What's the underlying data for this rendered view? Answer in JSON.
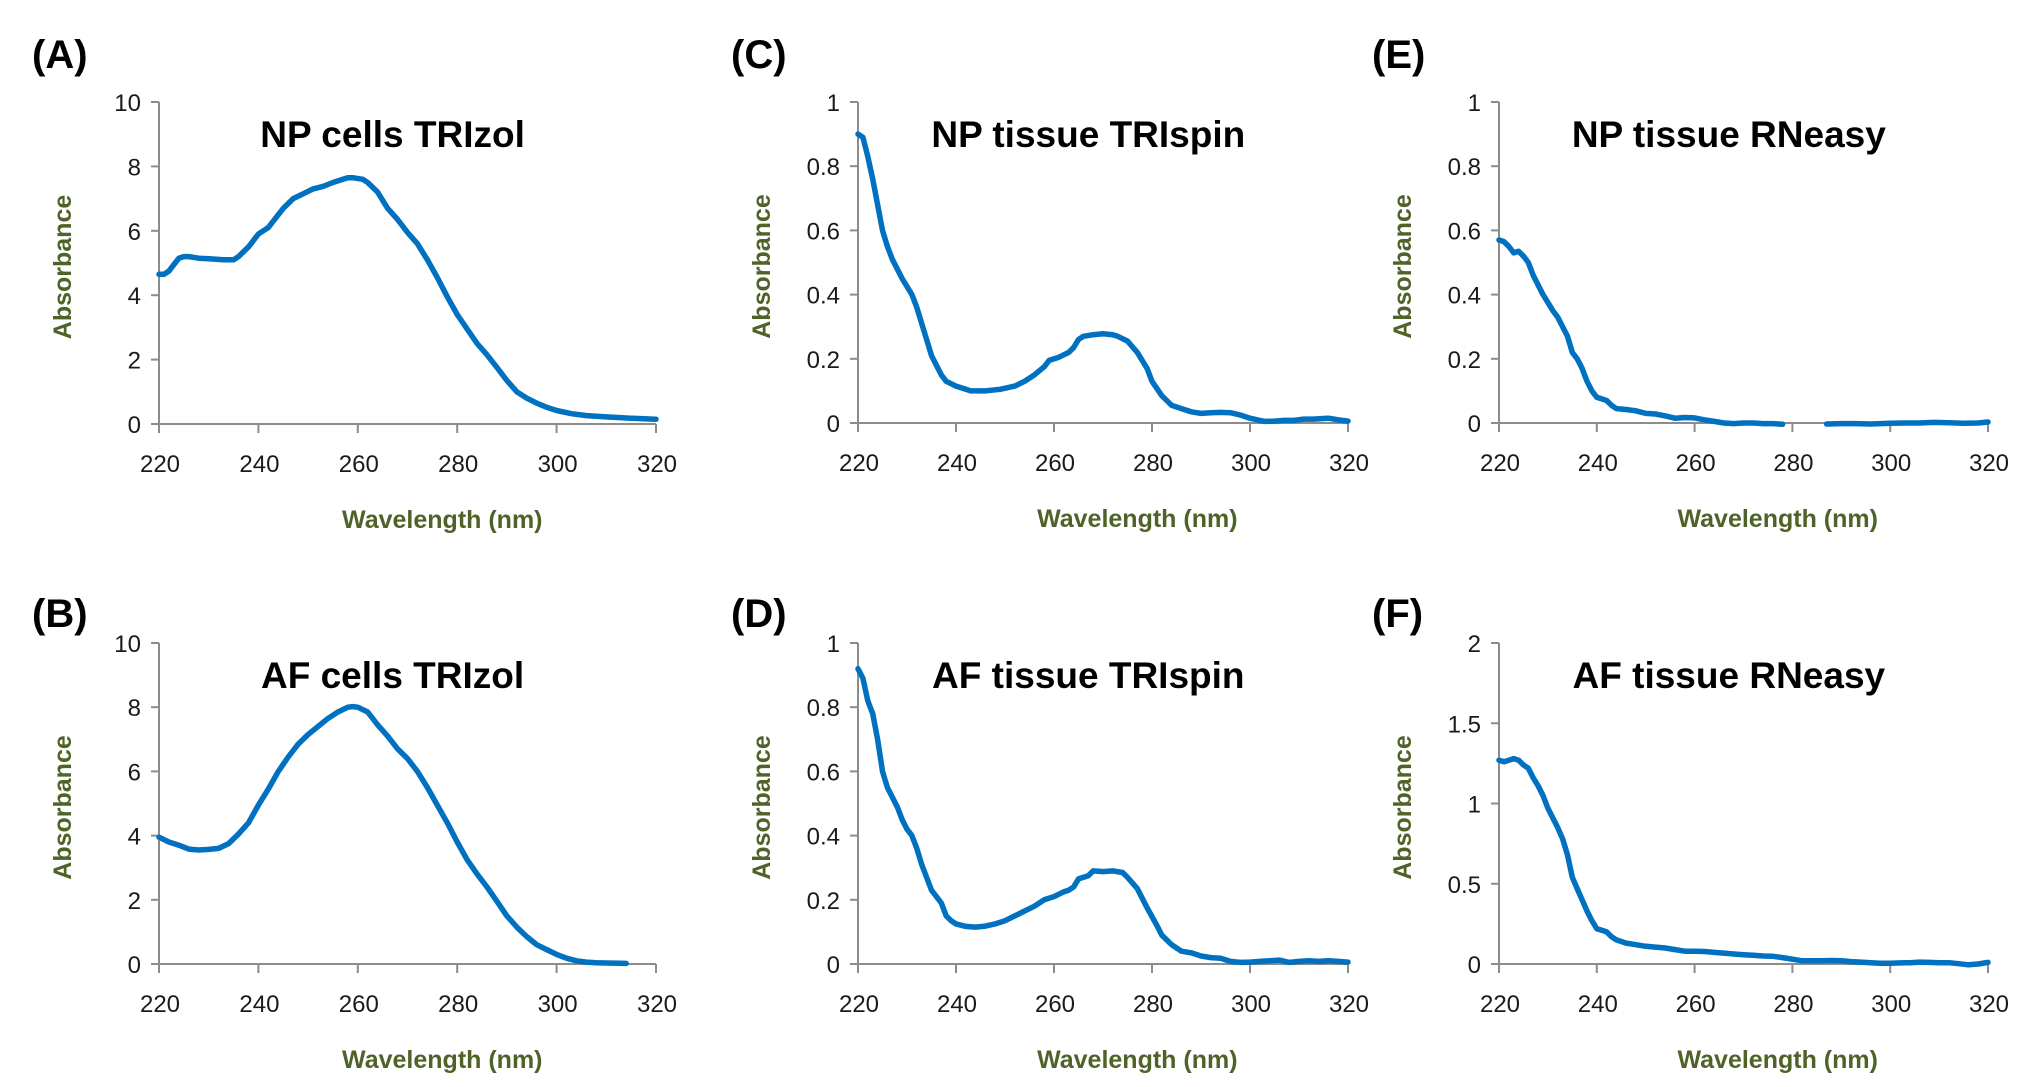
{
  "figure": {
    "line_color": "#0070C0",
    "axis_title_color": "#4F6228"
  },
  "chart_data": [
    {
      "id": "A",
      "panel_label": "(A)",
      "type": "line",
      "title": "NP cells TRIzol",
      "xlabel": "Wavelength (nm)",
      "ylabel": "Absorbance",
      "xlim": [
        220,
        320
      ],
      "ylim": [
        0,
        10
      ],
      "xticks": [
        220,
        240,
        260,
        280,
        300,
        320
      ],
      "yticks": [
        0,
        2,
        4,
        6,
        8,
        10
      ],
      "ytick_labels": [
        "0",
        "2",
        "4",
        "6",
        "8",
        "10"
      ],
      "grid": false,
      "legend": "none",
      "series": [
        {
          "name": "NP cells TRIzol",
          "x": [
            220,
            221,
            222,
            223,
            224,
            225,
            226,
            228,
            230,
            233,
            235,
            236,
            238,
            240,
            242,
            244,
            245,
            247,
            249,
            251,
            253,
            255,
            257,
            258,
            259,
            261,
            262,
            264,
            266,
            268,
            270,
            272,
            274,
            276,
            278,
            280,
            282,
            284,
            286,
            288,
            290,
            292,
            294,
            296,
            298,
            300,
            303,
            306,
            310,
            315,
            320
          ],
          "y": [
            4.65,
            4.65,
            4.75,
            4.95,
            5.15,
            5.2,
            5.2,
            5.15,
            5.13,
            5.1,
            5.1,
            5.2,
            5.5,
            5.9,
            6.1,
            6.5,
            6.7,
            7.0,
            7.15,
            7.3,
            7.38,
            7.5,
            7.6,
            7.65,
            7.65,
            7.6,
            7.5,
            7.2,
            6.7,
            6.35,
            5.95,
            5.6,
            5.1,
            4.55,
            3.95,
            3.4,
            2.95,
            2.5,
            2.15,
            1.75,
            1.35,
            1.0,
            0.8,
            0.65,
            0.52,
            0.42,
            0.32,
            0.26,
            0.22,
            0.18,
            0.15
          ]
        }
      ]
    },
    {
      "id": "B",
      "panel_label": "(B)",
      "type": "line",
      "title": "AF cells TRIzol",
      "xlabel": "Wavelength (nm)",
      "ylabel": "Absorbance",
      "xlim": [
        220,
        320
      ],
      "ylim": [
        0,
        10
      ],
      "xticks": [
        220,
        240,
        260,
        280,
        300,
        320
      ],
      "yticks": [
        0,
        2,
        4,
        6,
        8,
        10
      ],
      "ytick_labels": [
        "0",
        "2",
        "4",
        "6",
        "8",
        "10"
      ],
      "grid": false,
      "legend": "none",
      "series": [
        {
          "name": "AF cells TRIzol",
          "x": [
            220,
            222,
            224,
            226,
            228,
            230,
            232,
            234,
            236,
            238,
            240,
            242,
            244,
            246,
            248,
            250,
            252,
            254,
            256,
            258,
            259,
            260,
            262,
            264,
            266,
            268,
            270,
            272,
            274,
            276,
            278,
            280,
            282,
            284,
            286,
            288,
            290,
            292,
            294,
            296,
            298,
            300,
            302,
            304,
            306,
            308,
            310,
            314,
            320
          ],
          "y": [
            3.95,
            3.8,
            3.7,
            3.58,
            3.55,
            3.57,
            3.6,
            3.75,
            4.05,
            4.4,
            4.95,
            5.45,
            6.0,
            6.45,
            6.85,
            7.15,
            7.4,
            7.65,
            7.85,
            8.0,
            8.02,
            8.0,
            7.85,
            7.45,
            7.1,
            6.7,
            6.4,
            6.0,
            5.5,
            4.95,
            4.4,
            3.8,
            3.25,
            2.8,
            2.4,
            1.95,
            1.5,
            1.15,
            0.85,
            0.6,
            0.45,
            0.3,
            0.18,
            0.1,
            0.06,
            0.04,
            0.03,
            0.02,
            0.02
          ]
        }
      ]
    },
    {
      "id": "C",
      "panel_label": "(C)",
      "type": "line",
      "title": "NP tissue TRIspin",
      "xlabel": "Wavelength (nm)",
      "ylabel": "Absorbance",
      "xlim": [
        220,
        320
      ],
      "ylim": [
        0,
        1
      ],
      "xticks": [
        220,
        240,
        260,
        280,
        300,
        320
      ],
      "yticks": [
        0,
        0.2,
        0.4,
        0.6,
        0.8,
        1
      ],
      "ytick_labels": [
        "0",
        "0.2",
        "0.4",
        "0.6",
        "0.8",
        "1"
      ],
      "grid": false,
      "legend": "none",
      "series": [
        {
          "name": "NP tissue TRIspin",
          "x": [
            220,
            221,
            222,
            223,
            224,
            225,
            226,
            227,
            229,
            231,
            232,
            233,
            234,
            235,
            236,
            237,
            238,
            240,
            242,
            243,
            246,
            249,
            252,
            254,
            256,
            258,
            259,
            261,
            263,
            264,
            265,
            266,
            268,
            270,
            272,
            273,
            275,
            277,
            279,
            280,
            282,
            284,
            286,
            288,
            290,
            292,
            294,
            296,
            298,
            300,
            302,
            303,
            305,
            307,
            309,
            311,
            313,
            315,
            316,
            318,
            320
          ],
          "y": [
            0.9,
            0.89,
            0.83,
            0.76,
            0.68,
            0.6,
            0.55,
            0.51,
            0.45,
            0.4,
            0.36,
            0.31,
            0.26,
            0.21,
            0.18,
            0.15,
            0.13,
            0.115,
            0.105,
            0.1,
            0.1,
            0.105,
            0.115,
            0.13,
            0.15,
            0.175,
            0.195,
            0.205,
            0.22,
            0.235,
            0.26,
            0.27,
            0.275,
            0.278,
            0.275,
            0.27,
            0.255,
            0.22,
            0.17,
            0.13,
            0.085,
            0.055,
            0.045,
            0.035,
            0.03,
            0.032,
            0.033,
            0.032,
            0.025,
            0.015,
            0.008,
            0.005,
            0.006,
            0.008,
            0.008,
            0.012,
            0.012,
            0.014,
            0.015,
            0.01,
            0.006
          ]
        }
      ]
    },
    {
      "id": "D",
      "panel_label": "(D)",
      "type": "line",
      "title": "AF tissue TRIspin",
      "xlabel": "Wavelength (nm)",
      "ylabel": "Absorbance",
      "xlim": [
        220,
        320
      ],
      "ylim": [
        0,
        1
      ],
      "xticks": [
        220,
        240,
        260,
        280,
        300,
        320
      ],
      "yticks": [
        0,
        0.2,
        0.4,
        0.6,
        0.8,
        1
      ],
      "ytick_labels": [
        "0",
        "0.2",
        "0.4",
        "0.6",
        "0.8",
        "1"
      ],
      "grid": false,
      "legend": "none",
      "series": [
        {
          "name": "AF tissue TRIspin",
          "x": [
            220,
            221,
            222,
            223,
            224,
            225,
            226,
            227,
            228,
            229,
            230,
            231,
            232,
            233,
            234,
            235,
            236,
            237,
            238,
            239,
            240,
            242,
            244,
            246,
            248,
            250,
            252,
            254,
            256,
            258,
            260,
            262,
            263,
            264,
            265,
            267,
            268,
            270,
            272,
            274,
            275,
            277,
            279,
            281,
            282,
            284,
            286,
            288,
            290,
            292,
            294,
            296,
            298,
            300,
            302,
            304,
            306,
            308,
            310,
            312,
            314,
            316,
            318,
            320
          ],
          "y": [
            0.92,
            0.89,
            0.82,
            0.78,
            0.7,
            0.6,
            0.55,
            0.52,
            0.49,
            0.45,
            0.42,
            0.4,
            0.36,
            0.31,
            0.27,
            0.23,
            0.21,
            0.19,
            0.15,
            0.135,
            0.125,
            0.117,
            0.115,
            0.118,
            0.125,
            0.135,
            0.15,
            0.165,
            0.18,
            0.2,
            0.21,
            0.225,
            0.23,
            0.24,
            0.265,
            0.275,
            0.29,
            0.288,
            0.29,
            0.285,
            0.27,
            0.235,
            0.175,
            0.12,
            0.09,
            0.06,
            0.04,
            0.035,
            0.025,
            0.02,
            0.018,
            0.008,
            0.005,
            0.006,
            0.008,
            0.01,
            0.012,
            0.005,
            0.008,
            0.01,
            0.008,
            0.01,
            0.008,
            0.006
          ]
        }
      ]
    },
    {
      "id": "E",
      "panel_label": "(E)",
      "type": "line",
      "title": "NP tissue RNeasy",
      "xlabel": "Wavelength (nm)",
      "ylabel": "Absorbance",
      "xlim": [
        220,
        320
      ],
      "ylim": [
        0,
        1
      ],
      "xticks": [
        220,
        240,
        260,
        280,
        300,
        320
      ],
      "yticks": [
        0,
        0.2,
        0.4,
        0.6,
        0.8,
        1
      ],
      "ytick_labels": [
        "0",
        "0.2",
        "0.4",
        "0.6",
        "0.8",
        "1"
      ],
      "grid": false,
      "legend": "none",
      "series": [
        {
          "name": "NP tissue RNeasy",
          "x": [
            220,
            221,
            222,
            223,
            224,
            225,
            226,
            227,
            228,
            229,
            230,
            231,
            232,
            233,
            234,
            235,
            236,
            237,
            238,
            239,
            240,
            241,
            242,
            243,
            244,
            246,
            248,
            250,
            252,
            254,
            256,
            258,
            260,
            262,
            264,
            266,
            268,
            270,
            272,
            274,
            276,
            278,
            287,
            290,
            293,
            296,
            300,
            303,
            306,
            309,
            312,
            315,
            318,
            320
          ],
          "y": [
            0.57,
            0.565,
            0.55,
            0.53,
            0.535,
            0.52,
            0.5,
            0.46,
            0.43,
            0.4,
            0.375,
            0.35,
            0.33,
            0.3,
            0.27,
            0.22,
            0.2,
            0.17,
            0.13,
            0.1,
            0.08,
            0.075,
            0.07,
            0.055,
            0.045,
            0.042,
            0.038,
            0.03,
            0.028,
            0.022,
            0.015,
            0.017,
            0.016,
            0.01,
            0.005,
            0.0,
            -0.002,
            0.0,
            0.0,
            -0.002,
            -0.002,
            -0.004,
            -0.003,
            -0.002,
            -0.002,
            -0.003,
            -0.001,
            0.0,
            0.0,
            0.002,
            0.001,
            -0.001,
            0.0,
            0.003
          ]
        }
      ],
      "note": "data gap between ~278 and ~287 nm (trace below axis)"
    },
    {
      "id": "F",
      "panel_label": "(F)",
      "type": "line",
      "title": "AF tissue RNeasy",
      "xlabel": "Wavelength (nm)",
      "ylabel": "Absorbance",
      "xlim": [
        220,
        320
      ],
      "ylim": [
        0,
        2
      ],
      "xticks": [
        220,
        240,
        260,
        280,
        300,
        320
      ],
      "yticks": [
        0,
        0.5,
        1,
        1.5,
        2
      ],
      "ytick_labels": [
        "0",
        "0.5",
        "1",
        "1.5",
        "2"
      ],
      "grid": false,
      "legend": "none",
      "series": [
        {
          "name": "AF tissue RNeasy",
          "x": [
            220,
            221,
            222,
            223,
            224,
            225,
            226,
            227,
            228,
            229,
            230,
            231,
            232,
            233,
            234,
            235,
            236,
            237,
            238,
            239,
            240,
            241,
            242,
            243,
            244,
            246,
            248,
            250,
            252,
            254,
            256,
            258,
            260,
            262,
            264,
            266,
            268,
            270,
            272,
            274,
            276,
            278,
            280,
            282,
            284,
            286,
            288,
            290,
            292,
            294,
            296,
            298,
            300,
            302,
            304,
            306,
            308,
            310,
            312,
            314,
            316,
            318,
            320
          ],
          "y": [
            1.27,
            1.26,
            1.27,
            1.28,
            1.27,
            1.24,
            1.22,
            1.16,
            1.11,
            1.05,
            0.97,
            0.91,
            0.85,
            0.78,
            0.68,
            0.54,
            0.47,
            0.4,
            0.33,
            0.27,
            0.22,
            0.21,
            0.2,
            0.17,
            0.15,
            0.13,
            0.12,
            0.11,
            0.105,
            0.1,
            0.09,
            0.08,
            0.08,
            0.078,
            0.072,
            0.068,
            0.062,
            0.058,
            0.055,
            0.05,
            0.048,
            0.04,
            0.03,
            0.02,
            0.02,
            0.02,
            0.022,
            0.02,
            0.015,
            0.012,
            0.008,
            0.005,
            0.005,
            0.007,
            0.008,
            0.012,
            0.01,
            0.008,
            0.008,
            0.002,
            -0.005,
            0.0,
            0.01
          ]
        }
      ]
    }
  ]
}
